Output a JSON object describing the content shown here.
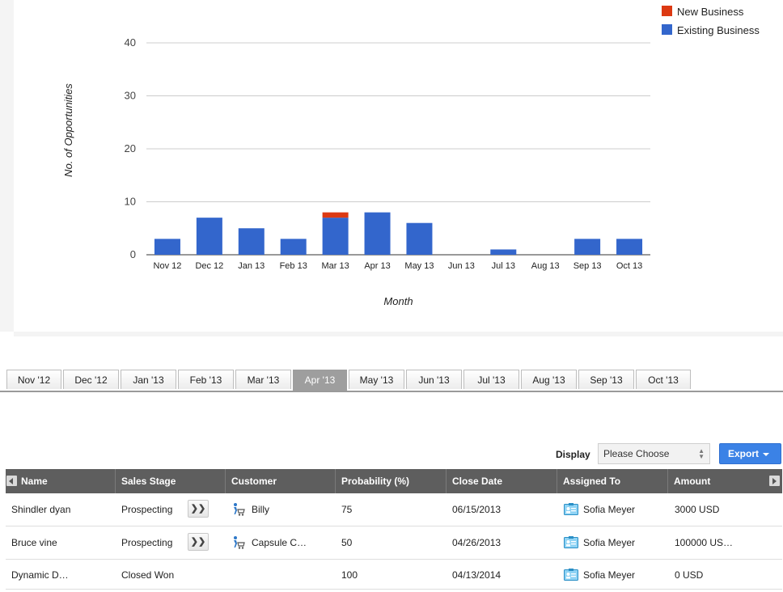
{
  "chart_data": {
    "type": "bar",
    "stacked": true,
    "title": "",
    "xlabel": "Month",
    "ylabel": "No. of Opportunities",
    "ylim": [
      0,
      40
    ],
    "yticks": [
      0,
      10,
      20,
      30,
      40
    ],
    "categories": [
      "Nov 12",
      "Dec 12",
      "Jan 13",
      "Feb 13",
      "Mar 13",
      "Apr 13",
      "May 13",
      "Jun 13",
      "Jul 13",
      "Aug 13",
      "Sep 13",
      "Oct 13"
    ],
    "series": [
      {
        "name": "Existing Business",
        "color": "#3366cc",
        "values": [
          3,
          7,
          5,
          3,
          7,
          8,
          6,
          0,
          1,
          0,
          3,
          3
        ]
      },
      {
        "name": "New Business",
        "color": "#dc3912",
        "values": [
          0,
          0,
          0,
          0,
          1,
          0,
          0,
          0,
          0,
          0,
          0,
          0
        ]
      }
    ],
    "legend": "top-right",
    "grid": true
  },
  "month_tabs": [
    "Nov '12",
    "Dec '12",
    "Jan '13",
    "Feb '13",
    "Mar '13",
    "Apr '13",
    "May '13",
    "Jun '13",
    "Jul '13",
    "Aug '13",
    "Sep '13",
    "Oct '13"
  ],
  "active_tab_index": 5,
  "toolbar": {
    "display_label": "Display",
    "display_value": "Please Choose",
    "export_label": "Export"
  },
  "table": {
    "columns": [
      "Name",
      "Sales Stage",
      "Customer",
      "Probability (%)",
      "Close Date",
      "Assigned To",
      "Amount"
    ],
    "rows": [
      {
        "name": "Shindler dyan",
        "stage": "Prospecting",
        "has_stage_button": true,
        "customer": "Billy",
        "probability": "75",
        "close_date": "06/15/2013",
        "assigned_to": "Sofia Meyer",
        "amount": "3000 USD"
      },
      {
        "name": "Bruce vine",
        "stage": "Prospecting",
        "has_stage_button": true,
        "customer": "Capsule C…",
        "probability": "50",
        "close_date": "04/26/2013",
        "assigned_to": "Sofia Meyer",
        "amount": "100000 US…"
      },
      {
        "name": "Dynamic D…",
        "stage": "Closed Won",
        "has_stage_button": false,
        "customer": "",
        "probability": "100",
        "close_date": "04/13/2014",
        "assigned_to": "Sofia Meyer",
        "amount": "0 USD"
      }
    ],
    "stage_button_label": "❯❯"
  }
}
